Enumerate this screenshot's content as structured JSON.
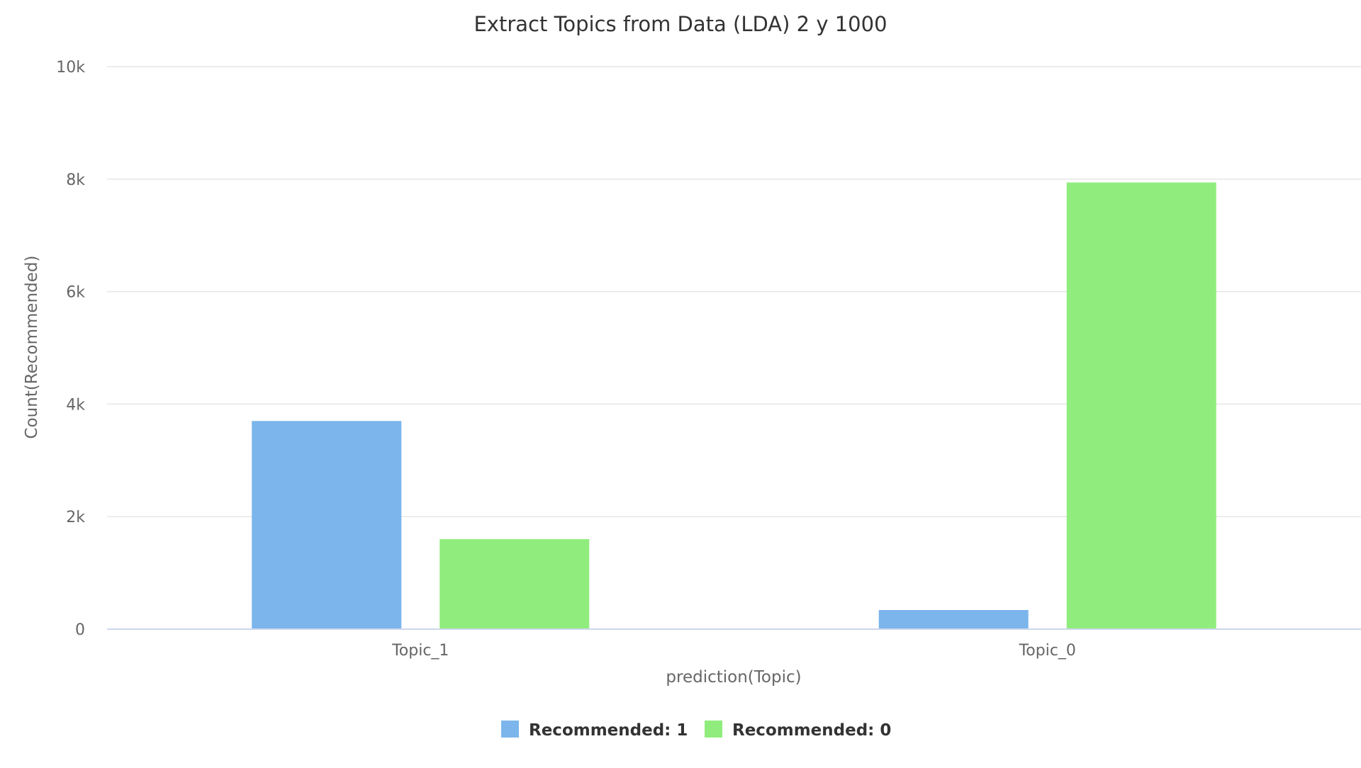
{
  "chart_data": {
    "type": "bar",
    "title": "Extract Topics from Data (LDA) 2 y 1000",
    "xlabel": "prediction(Topic)",
    "ylabel": "Count(Recommended)",
    "categories": [
      "Topic_1",
      "Topic_0"
    ],
    "series": [
      {
        "name": "Recommended: 1",
        "color": "#7cb5ec",
        "values": [
          3700,
          340
        ]
      },
      {
        "name": "Recommended: 0",
        "color": "#90ed7d",
        "values": [
          1600,
          7940
        ]
      }
    ],
    "ylim": [
      0,
      10000
    ],
    "yticks": [
      0,
      2000,
      4000,
      6000,
      8000,
      10000
    ],
    "ytick_labels": [
      "0",
      "2k",
      "4k",
      "6k",
      "8k",
      "10k"
    ],
    "grid": true,
    "legend_position": "bottom-center"
  }
}
